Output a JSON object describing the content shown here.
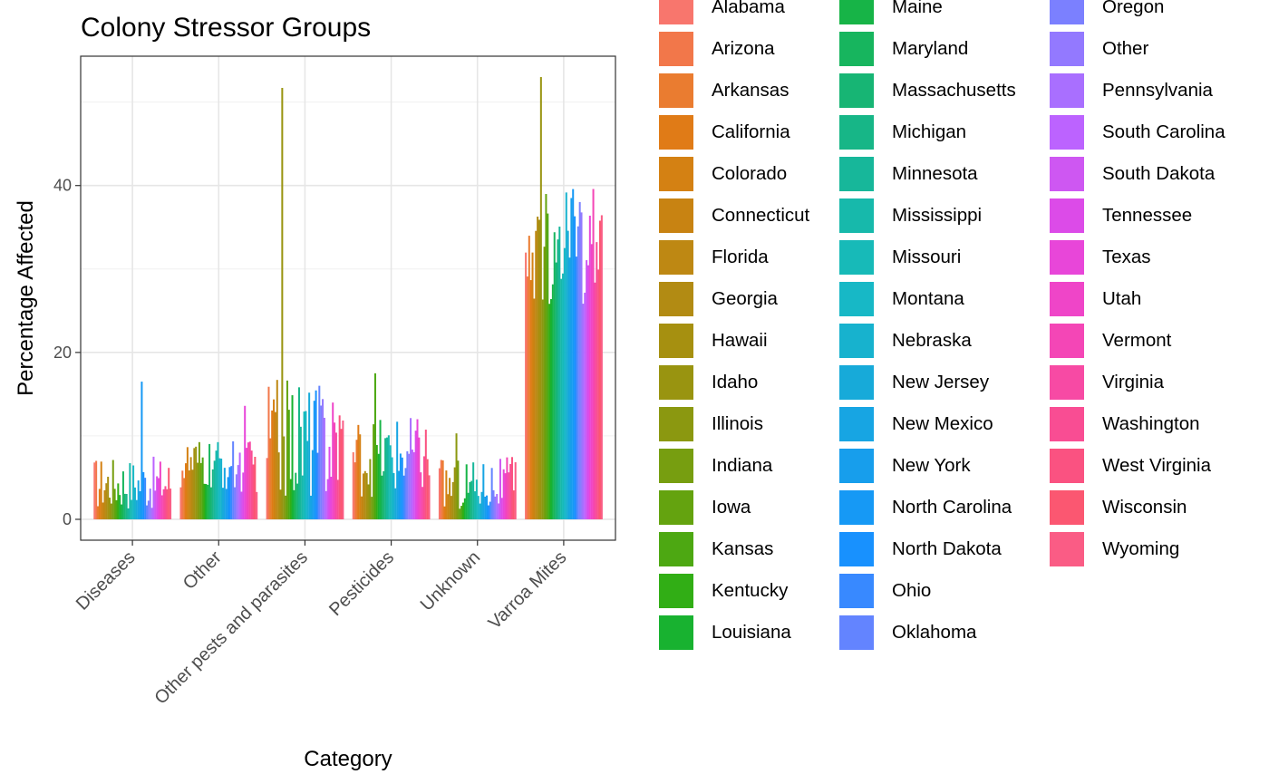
{
  "chart_data": {
    "type": "bar",
    "title": "Colony Stressor Groups",
    "xlabel": "Category",
    "ylabel": "Percentage Affected",
    "ylim": [
      -2.5,
      55.5
    ],
    "yticks": [
      0,
      20,
      40
    ],
    "legend_position": "right",
    "categories": [
      "Diseases",
      "Other",
      "Other pests and parasites",
      "Pesticides",
      "Unknown",
      "Varroa Mites"
    ],
    "states": [
      "Alabama",
      "Arizona",
      "Arkansas",
      "California",
      "Colorado",
      "Connecticut",
      "Florida",
      "Georgia",
      "Hawaii",
      "Idaho",
      "Illinois",
      "Indiana",
      "Iowa",
      "Kansas",
      "Kentucky",
      "Louisiana",
      "Maine",
      "Maryland",
      "Massachusetts",
      "Michigan",
      "Minnesota",
      "Mississippi",
      "Missouri",
      "Montana",
      "Nebraska",
      "New Jersey",
      "New Mexico",
      "New York",
      "North Carolina",
      "North Dakota",
      "Ohio",
      "Oklahoma",
      "Oregon",
      "Other",
      "Pennsylvania",
      "South Carolina",
      "South Dakota",
      "Tennessee",
      "Texas",
      "Utah",
      "Vermont",
      "Virginia",
      "Washington",
      "West Virginia",
      "Wisconsin",
      "Wyoming"
    ],
    "colors": [
      "#F8766D",
      "#F2774A",
      "#EA7C30",
      "#E07B17",
      "#D48113",
      "#C88312",
      "#BE8813",
      "#B28B13",
      "#A69010",
      "#999410",
      "#8B9810",
      "#779E10",
      "#64A30F",
      "#4DA812",
      "#31AE15",
      "#18B230",
      "#17B447",
      "#17B55E",
      "#17B574",
      "#17B687",
      "#17B79A",
      "#17B9AB",
      "#17BAB8",
      "#17B8C6",
      "#17B2CE",
      "#17AAD9",
      "#17A5E3",
      "#179EEC",
      "#1699F5",
      "#1891FE",
      "#3889FF",
      "#6384FF",
      "#7B80FF",
      "#9379FF",
      "#A96FFF",
      "#BC63FF",
      "#CE57F2",
      "#DC4BE8",
      "#E846D9",
      "#EF45C8",
      "#F446B6",
      "#F74AA4",
      "#F94D93",
      "#FA5281",
      "#FB5771",
      "#FA5C85"
    ],
    "max_bars": [
      {
        "category": "Diseases",
        "max": 16.5
      },
      {
        "category": "Other",
        "max": 13.6
      },
      {
        "category": "Other pests and parasites",
        "max": 51.7
      },
      {
        "category": "Pesticides",
        "max": 17.5
      },
      {
        "category": "Unknown",
        "max": 10.3
      },
      {
        "category": "Varroa Mites",
        "max": 53.0
      }
    ]
  }
}
